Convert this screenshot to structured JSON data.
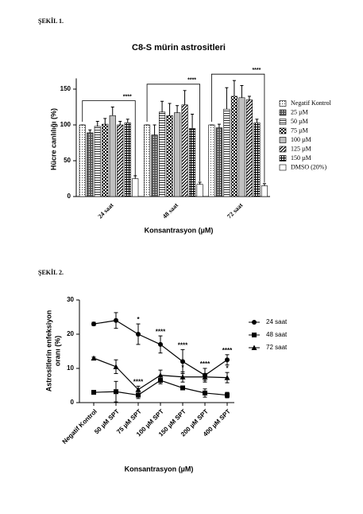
{
  "figures": [
    "ŞEKİL 1.",
    "ŞEKİL 2."
  ],
  "chart_data": [
    {
      "type": "bar",
      "title": "C8-S mürin astrositleri",
      "y_label": "Hücre canlılığı  (%)",
      "x_label": "Konsantrasyon (µM)",
      "categories": [
        "24 saat",
        "48 saat",
        "72 saat"
      ],
      "ylim": [
        0,
        165
      ],
      "yticks": [
        0,
        50,
        100,
        150
      ],
      "significance": [
        "****",
        "****",
        "****"
      ],
      "series": [
        {
          "name": "Negatif Kontrol",
          "color": "#000000",
          "pattern": "sparse-dots",
          "values": [
            100,
            100,
            100
          ],
          "errors": [
            0,
            0,
            0
          ]
        },
        {
          "name": "25 µM",
          "color": "#000000",
          "pattern": "crosshatch",
          "values": [
            89,
            86,
            96
          ],
          "errors": [
            4,
            14,
            5
          ]
        },
        {
          "name": "50 µM",
          "color": "#000000",
          "pattern": "hlines",
          "values": [
            98,
            118,
            122
          ],
          "errors": [
            7,
            15,
            30
          ]
        },
        {
          "name": "75 µM",
          "color": "#000000",
          "pattern": "checker",
          "values": [
            101,
            113,
            140
          ],
          "errors": [
            8,
            17,
            22
          ]
        },
        {
          "name": "100 µM",
          "color": "#000000",
          "pattern": "dense-dots",
          "values": [
            113,
            117,
            138
          ],
          "errors": [
            12,
            10,
            17
          ]
        },
        {
          "name": "125 µM",
          "color": "#000000",
          "pattern": "diagonal",
          "values": [
            100,
            128,
            135
          ],
          "errors": [
            5,
            20,
            5
          ]
        },
        {
          "name": "150 µM",
          "color": "#000000",
          "pattern": "grid",
          "values": [
            103,
            95,
            103
          ],
          "errors": [
            5,
            20,
            5
          ]
        },
        {
          "name": "DMSO (20%)",
          "color": "#000000",
          "pattern": "none",
          "values": [
            25,
            17,
            15
          ],
          "errors": [
            4,
            3,
            3
          ]
        }
      ]
    },
    {
      "type": "line",
      "y_label": [
        "Astrositlerin enfeksiyon",
        "oranı (%)"
      ],
      "x_label": "Konsantrasyon (µM)",
      "categories": [
        "Negatif Kontrol",
        "50 µM SPT",
        "75 µM SPT",
        "100 µM SPT",
        "150 µM SPT",
        "200 µM SPT",
        "400 µM SPT"
      ],
      "ylim": [
        0,
        30
      ],
      "yticks": [
        0,
        10,
        20,
        30
      ],
      "series": [
        {
          "name": "24 saat",
          "color": "#000000",
          "marker": "circle",
          "values": [
            23,
            24,
            20,
            17,
            12,
            8,
            12.5
          ],
          "errors": [
            0.5,
            2.3,
            3,
            2.5,
            3.5,
            2,
            1.5
          ],
          "significance": [
            null,
            null,
            "*",
            "****",
            "****",
            "****",
            "****"
          ]
        },
        {
          "name": "48 saat",
          "color": "#000000",
          "marker": "square",
          "values": [
            3,
            3.2,
            2.2,
            6.5,
            4.3,
            2.8,
            2.2
          ],
          "errors": [
            0.3,
            3,
            1,
            1,
            0.5,
            1.2,
            0.8
          ],
          "significance": [
            null,
            null,
            null,
            null,
            null,
            null,
            null
          ]
        },
        {
          "name": "72 saat",
          "color": "#000000",
          "marker": "triangle",
          "values": [
            13,
            10.5,
            3.8,
            8,
            7.5,
            7.5,
            7.3
          ],
          "errors": [
            0.3,
            2,
            1,
            1.5,
            1.5,
            1,
            1.5
          ],
          "significance": [
            null,
            null,
            "****",
            null,
            "*",
            null,
            "*"
          ]
        }
      ]
    }
  ]
}
